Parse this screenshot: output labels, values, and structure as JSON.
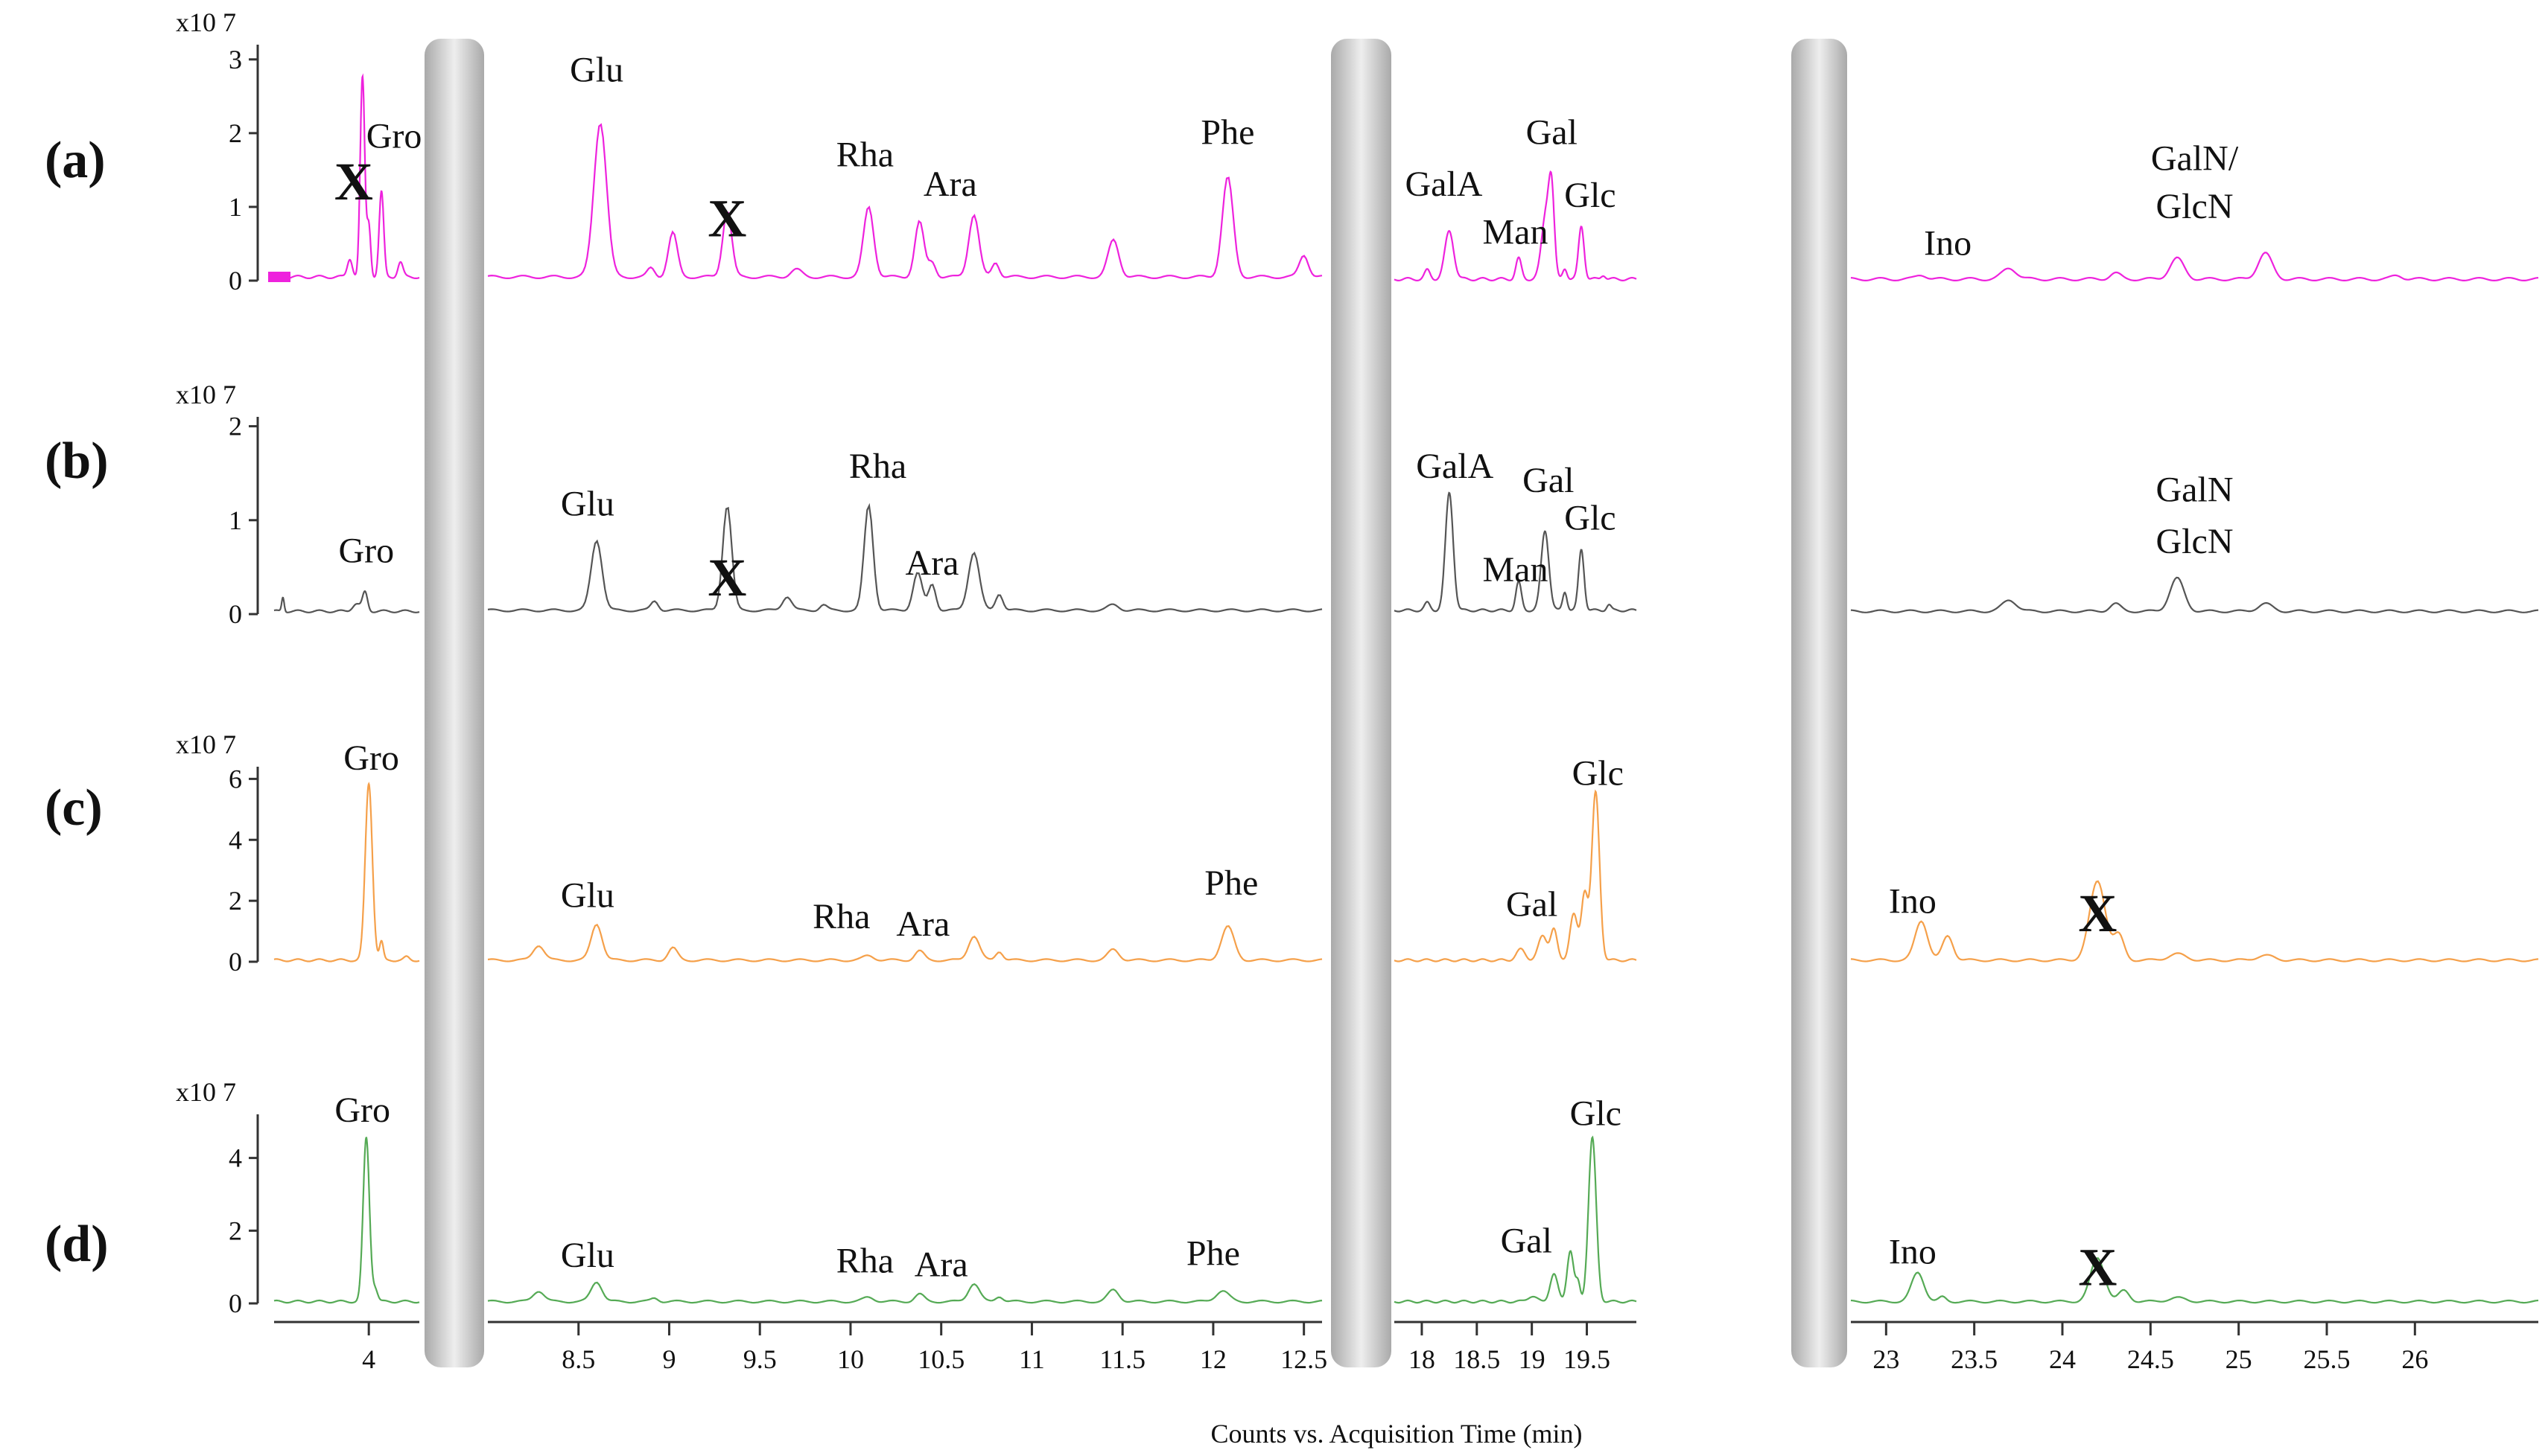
{
  "x_axis_title": "Counts vs. Acquisition Time (min)",
  "scale_label": "x10 7",
  "panel_labels": [
    "(a)",
    "(b)",
    "(c)",
    "(d)"
  ],
  "chart_data": {
    "type": "line",
    "xlabel": "Counts vs. Acquisition Time (min)",
    "segments": [
      {
        "xlim": [
          3.25,
          4.4
        ],
        "ticks": [
          4
        ]
      },
      {
        "xlim": [
          8.0,
          12.6
        ],
        "ticks": [
          8.5,
          9,
          9.5,
          10,
          10.5,
          11,
          11.5,
          12,
          12.5
        ]
      },
      {
        "xlim": [
          17.75,
          19.95
        ],
        "ticks": [
          18,
          18.5,
          19,
          19.5
        ]
      },
      {
        "xlim": [
          22.8,
          26.7
        ],
        "ticks": [
          23,
          23.5,
          24,
          24.5,
          25,
          25.5,
          26
        ]
      }
    ],
    "rows": [
      {
        "label": "(a)",
        "color": "#ee22dd",
        "ylim": [
          0,
          3.2
        ],
        "yticks": [
          0,
          1,
          2,
          3
        ],
        "baseline": [
          0.05,
          0.05,
          0.02,
          0.02
        ],
        "peaks": [
          [
            3.95,
            2.7,
            0.018
          ],
          [
            4.0,
            0.7,
            0.015
          ],
          [
            4.1,
            1.15,
            0.018
          ],
          [
            4.25,
            0.2,
            0.02
          ],
          [
            3.85,
            0.25,
            0.02
          ],
          [
            8.62,
            2.1,
            0.035
          ],
          [
            8.9,
            0.12,
            0.02
          ],
          [
            9.02,
            0.6,
            0.025
          ],
          [
            9.32,
            0.9,
            0.025
          ],
          [
            9.7,
            0.1,
            0.03
          ],
          [
            10.1,
            0.95,
            0.028
          ],
          [
            10.38,
            0.75,
            0.025
          ],
          [
            10.45,
            0.2,
            0.02
          ],
          [
            10.68,
            0.85,
            0.028
          ],
          [
            10.8,
            0.2,
            0.02
          ],
          [
            11.45,
            0.5,
            0.03
          ],
          [
            12.08,
            1.35,
            0.03
          ],
          [
            12.5,
            0.3,
            0.025
          ],
          [
            18.05,
            0.12,
            0.025
          ],
          [
            18.25,
            0.65,
            0.04
          ],
          [
            18.88,
            0.28,
            0.025
          ],
          [
            19.13,
            0.9,
            0.04
          ],
          [
            19.18,
            1.0,
            0.025
          ],
          [
            19.3,
            0.15,
            0.02
          ],
          [
            19.45,
            0.72,
            0.025
          ],
          [
            19.65,
            0.06,
            0.02
          ],
          [
            23.2,
            0.06,
            0.03
          ],
          [
            23.7,
            0.15,
            0.04
          ],
          [
            24.3,
            0.08,
            0.03
          ],
          [
            24.65,
            0.28,
            0.04
          ],
          [
            25.15,
            0.35,
            0.04
          ],
          [
            25.9,
            0.05,
            0.03
          ]
        ]
      },
      {
        "label": "(b)",
        "color": "#555555",
        "ylim": [
          0,
          2.1
        ],
        "yticks": [
          0,
          1,
          2
        ],
        "baseline": [
          0.03,
          0.04,
          0.04,
          0.03
        ],
        "peaks": [
          [
            3.32,
            0.15,
            0.01
          ],
          [
            3.9,
            0.08,
            0.03
          ],
          [
            3.97,
            0.2,
            0.02
          ],
          [
            8.6,
            0.75,
            0.03
          ],
          [
            8.92,
            0.1,
            0.02
          ],
          [
            9.32,
            1.12,
            0.025
          ],
          [
            9.65,
            0.15,
            0.025
          ],
          [
            9.85,
            0.06,
            0.02
          ],
          [
            10.1,
            1.12,
            0.025
          ],
          [
            10.37,
            0.4,
            0.025
          ],
          [
            10.45,
            0.28,
            0.02
          ],
          [
            10.68,
            0.62,
            0.03
          ],
          [
            10.82,
            0.18,
            0.02
          ],
          [
            11.45,
            0.06,
            0.03
          ],
          [
            18.05,
            0.08,
            0.025
          ],
          [
            18.25,
            1.25,
            0.035
          ],
          [
            18.88,
            0.3,
            0.025
          ],
          [
            19.12,
            0.85,
            0.035
          ],
          [
            19.3,
            0.2,
            0.02
          ],
          [
            19.45,
            0.65,
            0.025
          ],
          [
            19.7,
            0.06,
            0.02
          ],
          [
            23.7,
            0.12,
            0.04
          ],
          [
            24.3,
            0.08,
            0.03
          ],
          [
            24.65,
            0.35,
            0.04
          ],
          [
            25.15,
            0.08,
            0.04
          ]
        ]
      },
      {
        "label": "(c)",
        "color": "#f5a04a",
        "ylim": [
          0,
          6.4
        ],
        "yticks": [
          0,
          2,
          4,
          6
        ],
        "baseline": [
          0.05,
          0.05,
          0.05,
          0.05
        ],
        "peaks": [
          [
            4.0,
            5.8,
            0.028
          ],
          [
            4.1,
            0.6,
            0.015
          ],
          [
            4.3,
            0.1,
            0.02
          ],
          [
            8.28,
            0.5,
            0.03
          ],
          [
            8.6,
            1.2,
            0.03
          ],
          [
            9.02,
            0.4,
            0.025
          ],
          [
            10.1,
            0.15,
            0.03
          ],
          [
            10.38,
            0.3,
            0.025
          ],
          [
            10.68,
            0.8,
            0.03
          ],
          [
            10.82,
            0.3,
            0.02
          ],
          [
            11.45,
            0.35,
            0.03
          ],
          [
            12.08,
            1.1,
            0.035
          ],
          [
            18.9,
            0.35,
            0.04
          ],
          [
            19.1,
            0.8,
            0.04
          ],
          [
            19.2,
            1.0,
            0.03
          ],
          [
            19.38,
            1.5,
            0.035
          ],
          [
            19.48,
            2.2,
            0.03
          ],
          [
            19.58,
            5.5,
            0.035
          ],
          [
            23.2,
            1.3,
            0.035
          ],
          [
            23.35,
            0.8,
            0.03
          ],
          [
            24.2,
            2.6,
            0.045
          ],
          [
            24.32,
            0.8,
            0.03
          ],
          [
            24.65,
            0.2,
            0.05
          ],
          [
            25.15,
            0.15,
            0.05
          ]
        ]
      },
      {
        "label": "(d)",
        "color": "#55aa55",
        "ylim": [
          0,
          5.2
        ],
        "yticks": [
          0,
          2,
          4
        ],
        "baseline": [
          0.05,
          0.05,
          0.05,
          0.05
        ],
        "peaks": [
          [
            3.98,
            4.5,
            0.025
          ],
          [
            4.05,
            0.35,
            0.02
          ],
          [
            8.28,
            0.3,
            0.03
          ],
          [
            8.6,
            0.55,
            0.03
          ],
          [
            8.92,
            0.1,
            0.02
          ],
          [
            10.1,
            0.12,
            0.03
          ],
          [
            10.38,
            0.2,
            0.025
          ],
          [
            10.68,
            0.5,
            0.03
          ],
          [
            10.82,
            0.15,
            0.02
          ],
          [
            11.45,
            0.32,
            0.03
          ],
          [
            12.05,
            0.3,
            0.035
          ],
          [
            19.0,
            0.15,
            0.04
          ],
          [
            19.2,
            0.75,
            0.035
          ],
          [
            19.35,
            1.4,
            0.03
          ],
          [
            19.42,
            0.5,
            0.02
          ],
          [
            19.55,
            4.5,
            0.035
          ],
          [
            23.18,
            0.8,
            0.035
          ],
          [
            23.32,
            0.12,
            0.02
          ],
          [
            24.2,
            1.2,
            0.04
          ],
          [
            24.35,
            0.3,
            0.03
          ],
          [
            24.65,
            0.1,
            0.05
          ]
        ]
      }
    ],
    "annotations": [
      {
        "row": 0,
        "segment": 0,
        "x": 3.88,
        "value": 1.1,
        "text": "X",
        "style": "x"
      },
      {
        "row": 0,
        "segment": 0,
        "x": 4.2,
        "value": 1.8,
        "text": "Gro"
      },
      {
        "row": 0,
        "segment": 1,
        "x": 8.6,
        "value": 2.7,
        "text": "Glu"
      },
      {
        "row": 0,
        "segment": 1,
        "x": 9.32,
        "value": 0.6,
        "text": "X",
        "style": "x"
      },
      {
        "row": 0,
        "segment": 1,
        "x": 10.08,
        "value": 1.55,
        "text": "Rha"
      },
      {
        "row": 0,
        "segment": 1,
        "x": 10.55,
        "value": 1.15,
        "text": "Ara"
      },
      {
        "row": 0,
        "segment": 1,
        "x": 12.08,
        "value": 1.85,
        "text": "Phe"
      },
      {
        "row": 0,
        "segment": 2,
        "x": 18.2,
        "value": 1.15,
        "text": "GalA"
      },
      {
        "row": 0,
        "segment": 2,
        "x": 18.85,
        "value": 0.5,
        "text": "Man"
      },
      {
        "row": 0,
        "segment": 2,
        "x": 19.18,
        "value": 1.85,
        "text": "Gal"
      },
      {
        "row": 0,
        "segment": 2,
        "x": 19.53,
        "value": 1.0,
        "text": "Glc"
      },
      {
        "row": 0,
        "segment": 3,
        "x": 23.35,
        "value": 0.35,
        "text": "Ino"
      },
      {
        "row": 0,
        "segment": 3,
        "x": 24.75,
        "value": 1.5,
        "text": "GalN/"
      },
      {
        "row": 0,
        "segment": 3,
        "x": 24.75,
        "value": 0.85,
        "text": "GlcN"
      },
      {
        "row": 1,
        "segment": 0,
        "x": 3.98,
        "value": 0.55,
        "text": "Gro"
      },
      {
        "row": 1,
        "segment": 1,
        "x": 8.55,
        "value": 1.05,
        "text": "Glu"
      },
      {
        "row": 1,
        "segment": 1,
        "x": 9.32,
        "value": 0.2,
        "text": "X",
        "style": "x"
      },
      {
        "row": 1,
        "segment": 1,
        "x": 10.15,
        "value": 1.45,
        "text": "Rha"
      },
      {
        "row": 1,
        "segment": 1,
        "x": 10.45,
        "value": 0.42,
        "text": "Ara"
      },
      {
        "row": 1,
        "segment": 2,
        "x": 18.3,
        "value": 1.45,
        "text": "GalA"
      },
      {
        "row": 1,
        "segment": 2,
        "x": 18.85,
        "value": 0.35,
        "text": "Man"
      },
      {
        "row": 1,
        "segment": 2,
        "x": 19.15,
        "value": 1.3,
        "text": "Gal"
      },
      {
        "row": 1,
        "segment": 2,
        "x": 19.53,
        "value": 0.9,
        "text": "Glc"
      },
      {
        "row": 1,
        "segment": 3,
        "x": 24.75,
        "value": 1.2,
        "text": "GalN"
      },
      {
        "row": 1,
        "segment": 3,
        "x": 24.75,
        "value": 0.65,
        "text": "GlcN"
      },
      {
        "row": 2,
        "segment": 0,
        "x": 4.02,
        "value": 6.3,
        "text": "Gro"
      },
      {
        "row": 2,
        "segment": 1,
        "x": 8.55,
        "value": 1.8,
        "text": "Glu"
      },
      {
        "row": 2,
        "segment": 1,
        "x": 9.95,
        "value": 1.1,
        "text": "Rha"
      },
      {
        "row": 2,
        "segment": 1,
        "x": 10.4,
        "value": 0.85,
        "text": "Ara"
      },
      {
        "row": 2,
        "segment": 1,
        "x": 12.1,
        "value": 2.2,
        "text": "Phe"
      },
      {
        "row": 2,
        "segment": 2,
        "x": 19.0,
        "value": 1.5,
        "text": "Gal"
      },
      {
        "row": 2,
        "segment": 2,
        "x": 19.6,
        "value": 5.8,
        "text": "Glc"
      },
      {
        "row": 2,
        "segment": 3,
        "x": 23.15,
        "value": 1.6,
        "text": "Ino"
      },
      {
        "row": 2,
        "segment": 3,
        "x": 24.2,
        "value": 1.0,
        "text": "X",
        "style": "x"
      },
      {
        "row": 3,
        "segment": 0,
        "x": 3.95,
        "value": 5.0,
        "text": "Gro"
      },
      {
        "row": 3,
        "segment": 1,
        "x": 8.55,
        "value": 1.0,
        "text": "Glu"
      },
      {
        "row": 3,
        "segment": 1,
        "x": 10.08,
        "value": 0.85,
        "text": "Rha"
      },
      {
        "row": 3,
        "segment": 1,
        "x": 10.5,
        "value": 0.75,
        "text": "Ara"
      },
      {
        "row": 3,
        "segment": 1,
        "x": 12.0,
        "value": 1.05,
        "text": "Phe"
      },
      {
        "row": 3,
        "segment": 2,
        "x": 18.95,
        "value": 1.4,
        "text": "Gal"
      },
      {
        "row": 3,
        "segment": 2,
        "x": 19.58,
        "value": 4.9,
        "text": "Glc"
      },
      {
        "row": 3,
        "segment": 3,
        "x": 23.15,
        "value": 1.1,
        "text": "Ino"
      },
      {
        "row": 3,
        "segment": 3,
        "x": 24.2,
        "value": 0.5,
        "text": "X",
        "style": "x"
      }
    ]
  }
}
